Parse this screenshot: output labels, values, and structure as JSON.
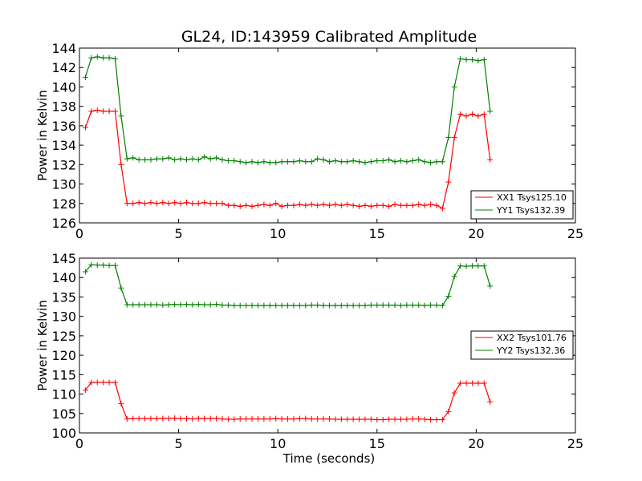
{
  "chart_data": [
    {
      "type": "line",
      "title": "GL24, ID:143959 Calibrated Amplitude",
      "xlabel": "",
      "ylabel": "Power in Kelvin",
      "xlim": [
        0,
        25
      ],
      "ylim": [
        126,
        144
      ],
      "xticks": [
        0,
        5,
        10,
        15,
        20,
        25
      ],
      "yticks": [
        126,
        128,
        130,
        132,
        134,
        136,
        138,
        140,
        142,
        144
      ],
      "grid": false,
      "legend_position": "lower-right",
      "x": [
        0.3,
        0.6,
        0.9,
        1.2,
        1.5,
        1.8,
        2.1,
        2.4,
        2.7,
        3.0,
        3.3,
        3.6,
        3.9,
        4.2,
        4.5,
        4.8,
        5.1,
        5.4,
        5.7,
        6.0,
        6.3,
        6.6,
        6.9,
        7.2,
        7.5,
        7.8,
        8.1,
        8.4,
        8.7,
        9.0,
        9.3,
        9.6,
        9.9,
        10.2,
        10.5,
        10.8,
        11.1,
        11.4,
        11.7,
        12.0,
        12.3,
        12.6,
        12.9,
        13.2,
        13.5,
        13.8,
        14.1,
        14.4,
        14.7,
        15.0,
        15.3,
        15.6,
        15.9,
        16.2,
        16.5,
        16.8,
        17.1,
        17.4,
        17.7,
        18.0,
        18.3,
        18.6,
        18.9,
        19.2,
        19.5,
        19.8,
        20.1,
        20.4,
        20.7
      ],
      "series": [
        {
          "name": "XX1 Tsys125.10",
          "color": "#ff0000",
          "values": [
            135.8,
            137.5,
            137.6,
            137.5,
            137.5,
            137.5,
            132.0,
            128.0,
            128.0,
            128.1,
            128.0,
            128.1,
            128.0,
            128.1,
            128.0,
            128.1,
            128.0,
            128.1,
            128.0,
            128.0,
            128.1,
            128.0,
            128.0,
            128.0,
            127.8,
            127.8,
            127.7,
            127.8,
            127.7,
            127.8,
            127.9,
            127.8,
            128.0,
            127.7,
            127.8,
            127.8,
            127.9,
            127.8,
            127.9,
            127.8,
            127.9,
            127.8,
            127.9,
            127.8,
            127.9,
            127.8,
            127.7,
            127.8,
            127.7,
            127.8,
            127.8,
            127.7,
            127.9,
            127.8,
            127.8,
            127.8,
            127.9,
            127.8,
            127.9,
            127.8,
            127.5,
            130.2,
            134.8,
            137.2,
            137.0,
            137.2,
            137.0,
            137.2,
            132.5
          ]
        },
        {
          "name": "YY1 Tsys132.39",
          "color": "#008000",
          "values": [
            141.0,
            143.0,
            143.1,
            143.0,
            143.0,
            142.9,
            137.0,
            132.6,
            132.7,
            132.5,
            132.5,
            132.5,
            132.6,
            132.6,
            132.7,
            132.5,
            132.6,
            132.5,
            132.6,
            132.5,
            132.8,
            132.6,
            132.7,
            132.5,
            132.4,
            132.4,
            132.3,
            132.2,
            132.3,
            132.2,
            132.3,
            132.2,
            132.2,
            132.3,
            132.3,
            132.3,
            132.4,
            132.3,
            132.3,
            132.6,
            132.5,
            132.3,
            132.4,
            132.3,
            132.3,
            132.4,
            132.3,
            132.2,
            132.3,
            132.4,
            132.4,
            132.5,
            132.3,
            132.4,
            132.3,
            132.4,
            132.5,
            132.3,
            132.2,
            132.3,
            132.3,
            134.8,
            140.0,
            142.9,
            142.8,
            142.8,
            142.7,
            142.8,
            137.5
          ]
        }
      ]
    },
    {
      "type": "line",
      "title": "",
      "xlabel": "Time (seconds)",
      "ylabel": "Power in Kelvin",
      "xlim": [
        0,
        25
      ],
      "ylim": [
        100,
        145
      ],
      "xticks": [
        0,
        5,
        10,
        15,
        20,
        25
      ],
      "yticks": [
        100,
        105,
        110,
        115,
        120,
        125,
        130,
        135,
        140,
        145
      ],
      "grid": false,
      "legend_position": "center-right",
      "x": [
        0.3,
        0.6,
        0.9,
        1.2,
        1.5,
        1.8,
        2.1,
        2.4,
        2.7,
        3.0,
        3.3,
        3.6,
        3.9,
        4.2,
        4.5,
        4.8,
        5.1,
        5.4,
        5.7,
        6.0,
        6.3,
        6.6,
        6.9,
        7.2,
        7.5,
        7.8,
        8.1,
        8.4,
        8.7,
        9.0,
        9.3,
        9.6,
        9.9,
        10.2,
        10.5,
        10.8,
        11.1,
        11.4,
        11.7,
        12.0,
        12.3,
        12.6,
        12.9,
        13.2,
        13.5,
        13.8,
        14.1,
        14.4,
        14.7,
        15.0,
        15.3,
        15.6,
        15.9,
        16.2,
        16.5,
        16.8,
        17.1,
        17.4,
        17.7,
        18.0,
        18.3,
        18.6,
        18.9,
        19.2,
        19.5,
        19.8,
        20.1,
        20.4,
        20.7
      ],
      "series": [
        {
          "name": "XX2 Tsys101.76",
          "color": "#ff0000",
          "values": [
            111.0,
            113.0,
            113.0,
            113.0,
            113.0,
            113.0,
            107.5,
            103.6,
            103.7,
            103.7,
            103.7,
            103.7,
            103.7,
            103.7,
            103.7,
            103.8,
            103.7,
            103.7,
            103.6,
            103.7,
            103.7,
            103.7,
            103.7,
            103.6,
            103.5,
            103.5,
            103.6,
            103.6,
            103.6,
            103.6,
            103.6,
            103.6,
            103.7,
            103.6,
            103.6,
            103.6,
            103.7,
            103.7,
            103.6,
            103.6,
            103.6,
            103.6,
            103.5,
            103.5,
            103.5,
            103.5,
            103.5,
            103.5,
            103.5,
            103.4,
            103.4,
            103.5,
            103.5,
            103.5,
            103.5,
            103.6,
            103.6,
            103.5,
            103.4,
            103.4,
            103.4,
            105.5,
            110.3,
            112.8,
            112.8,
            112.8,
            112.8,
            112.8,
            108.0
          ]
        },
        {
          "name": "YY2 Tsys132.36",
          "color": "#008000",
          "values": [
            141.5,
            143.3,
            143.2,
            143.2,
            143.1,
            143.1,
            137.3,
            133.0,
            133.0,
            133.0,
            133.0,
            133.0,
            133.0,
            132.9,
            133.0,
            133.1,
            133.0,
            133.1,
            133.0,
            133.1,
            133.0,
            133.0,
            133.1,
            132.9,
            132.9,
            132.8,
            132.8,
            132.8,
            132.8,
            132.8,
            132.8,
            132.8,
            132.8,
            132.8,
            132.8,
            132.8,
            132.8,
            132.8,
            132.9,
            132.9,
            132.8,
            132.8,
            132.8,
            132.8,
            132.8,
            132.8,
            132.8,
            132.8,
            132.9,
            132.9,
            132.9,
            132.9,
            132.9,
            132.8,
            132.9,
            132.9,
            132.9,
            132.8,
            132.9,
            132.9,
            132.8,
            135.2,
            140.3,
            143.0,
            142.9,
            143.0,
            143.0,
            143.0,
            137.8
          ]
        }
      ]
    }
  ]
}
